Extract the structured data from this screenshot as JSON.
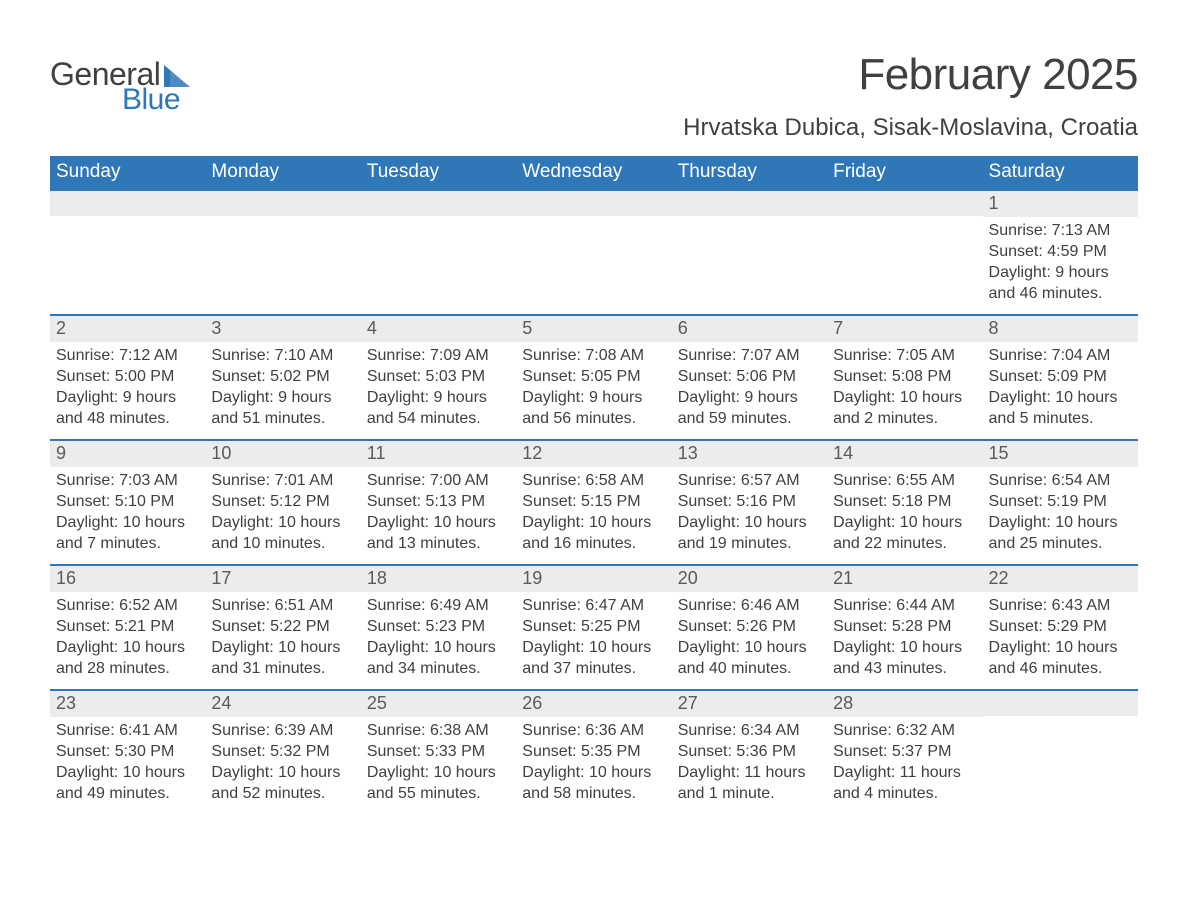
{
  "brand": {
    "word1": "General",
    "word2": "Blue",
    "color_primary": "#2f77b7",
    "color_text": "#404040"
  },
  "title": "February 2025",
  "location": "Hrvatska Dubica, Sisak-Moslavina, Croatia",
  "colors": {
    "header_bg": "#2f77b7",
    "header_text": "#ffffff",
    "daynum_bg": "#ececec",
    "border": "#2f77b7",
    "body_text": "#404040",
    "background": "#ffffff"
  },
  "fonts": {
    "title_pt": 44,
    "location_pt": 24,
    "day_header_pt": 19,
    "daynum_pt": 18,
    "details_pt": 16
  },
  "day_labels": [
    "Sunday",
    "Monday",
    "Tuesday",
    "Wednesday",
    "Thursday",
    "Friday",
    "Saturday"
  ],
  "weeks": [
    [
      null,
      null,
      null,
      null,
      null,
      null,
      {
        "num": "1",
        "sunrise": "Sunrise: 7:13 AM",
        "sunset": "Sunset: 4:59 PM",
        "daylight1": "Daylight: 9 hours",
        "daylight2": "and 46 minutes."
      }
    ],
    [
      {
        "num": "2",
        "sunrise": "Sunrise: 7:12 AM",
        "sunset": "Sunset: 5:00 PM",
        "daylight1": "Daylight: 9 hours",
        "daylight2": "and 48 minutes."
      },
      {
        "num": "3",
        "sunrise": "Sunrise: 7:10 AM",
        "sunset": "Sunset: 5:02 PM",
        "daylight1": "Daylight: 9 hours",
        "daylight2": "and 51 minutes."
      },
      {
        "num": "4",
        "sunrise": "Sunrise: 7:09 AM",
        "sunset": "Sunset: 5:03 PM",
        "daylight1": "Daylight: 9 hours",
        "daylight2": "and 54 minutes."
      },
      {
        "num": "5",
        "sunrise": "Sunrise: 7:08 AM",
        "sunset": "Sunset: 5:05 PM",
        "daylight1": "Daylight: 9 hours",
        "daylight2": "and 56 minutes."
      },
      {
        "num": "6",
        "sunrise": "Sunrise: 7:07 AM",
        "sunset": "Sunset: 5:06 PM",
        "daylight1": "Daylight: 9 hours",
        "daylight2": "and 59 minutes."
      },
      {
        "num": "7",
        "sunrise": "Sunrise: 7:05 AM",
        "sunset": "Sunset: 5:08 PM",
        "daylight1": "Daylight: 10 hours",
        "daylight2": "and 2 minutes."
      },
      {
        "num": "8",
        "sunrise": "Sunrise: 7:04 AM",
        "sunset": "Sunset: 5:09 PM",
        "daylight1": "Daylight: 10 hours",
        "daylight2": "and 5 minutes."
      }
    ],
    [
      {
        "num": "9",
        "sunrise": "Sunrise: 7:03 AM",
        "sunset": "Sunset: 5:10 PM",
        "daylight1": "Daylight: 10 hours",
        "daylight2": "and 7 minutes."
      },
      {
        "num": "10",
        "sunrise": "Sunrise: 7:01 AM",
        "sunset": "Sunset: 5:12 PM",
        "daylight1": "Daylight: 10 hours",
        "daylight2": "and 10 minutes."
      },
      {
        "num": "11",
        "sunrise": "Sunrise: 7:00 AM",
        "sunset": "Sunset: 5:13 PM",
        "daylight1": "Daylight: 10 hours",
        "daylight2": "and 13 minutes."
      },
      {
        "num": "12",
        "sunrise": "Sunrise: 6:58 AM",
        "sunset": "Sunset: 5:15 PM",
        "daylight1": "Daylight: 10 hours",
        "daylight2": "and 16 minutes."
      },
      {
        "num": "13",
        "sunrise": "Sunrise: 6:57 AM",
        "sunset": "Sunset: 5:16 PM",
        "daylight1": "Daylight: 10 hours",
        "daylight2": "and 19 minutes."
      },
      {
        "num": "14",
        "sunrise": "Sunrise: 6:55 AM",
        "sunset": "Sunset: 5:18 PM",
        "daylight1": "Daylight: 10 hours",
        "daylight2": "and 22 minutes."
      },
      {
        "num": "15",
        "sunrise": "Sunrise: 6:54 AM",
        "sunset": "Sunset: 5:19 PM",
        "daylight1": "Daylight: 10 hours",
        "daylight2": "and 25 minutes."
      }
    ],
    [
      {
        "num": "16",
        "sunrise": "Sunrise: 6:52 AM",
        "sunset": "Sunset: 5:21 PM",
        "daylight1": "Daylight: 10 hours",
        "daylight2": "and 28 minutes."
      },
      {
        "num": "17",
        "sunrise": "Sunrise: 6:51 AM",
        "sunset": "Sunset: 5:22 PM",
        "daylight1": "Daylight: 10 hours",
        "daylight2": "and 31 minutes."
      },
      {
        "num": "18",
        "sunrise": "Sunrise: 6:49 AM",
        "sunset": "Sunset: 5:23 PM",
        "daylight1": "Daylight: 10 hours",
        "daylight2": "and 34 minutes."
      },
      {
        "num": "19",
        "sunrise": "Sunrise: 6:47 AM",
        "sunset": "Sunset: 5:25 PM",
        "daylight1": "Daylight: 10 hours",
        "daylight2": "and 37 minutes."
      },
      {
        "num": "20",
        "sunrise": "Sunrise: 6:46 AM",
        "sunset": "Sunset: 5:26 PM",
        "daylight1": "Daylight: 10 hours",
        "daylight2": "and 40 minutes."
      },
      {
        "num": "21",
        "sunrise": "Sunrise: 6:44 AM",
        "sunset": "Sunset: 5:28 PM",
        "daylight1": "Daylight: 10 hours",
        "daylight2": "and 43 minutes."
      },
      {
        "num": "22",
        "sunrise": "Sunrise: 6:43 AM",
        "sunset": "Sunset: 5:29 PM",
        "daylight1": "Daylight: 10 hours",
        "daylight2": "and 46 minutes."
      }
    ],
    [
      {
        "num": "23",
        "sunrise": "Sunrise: 6:41 AM",
        "sunset": "Sunset: 5:30 PM",
        "daylight1": "Daylight: 10 hours",
        "daylight2": "and 49 minutes."
      },
      {
        "num": "24",
        "sunrise": "Sunrise: 6:39 AM",
        "sunset": "Sunset: 5:32 PM",
        "daylight1": "Daylight: 10 hours",
        "daylight2": "and 52 minutes."
      },
      {
        "num": "25",
        "sunrise": "Sunrise: 6:38 AM",
        "sunset": "Sunset: 5:33 PM",
        "daylight1": "Daylight: 10 hours",
        "daylight2": "and 55 minutes."
      },
      {
        "num": "26",
        "sunrise": "Sunrise: 6:36 AM",
        "sunset": "Sunset: 5:35 PM",
        "daylight1": "Daylight: 10 hours",
        "daylight2": "and 58 minutes."
      },
      {
        "num": "27",
        "sunrise": "Sunrise: 6:34 AM",
        "sunset": "Sunset: 5:36 PM",
        "daylight1": "Daylight: 11 hours",
        "daylight2": "and 1 minute."
      },
      {
        "num": "28",
        "sunrise": "Sunrise: 6:32 AM",
        "sunset": "Sunset: 5:37 PM",
        "daylight1": "Daylight: 11 hours",
        "daylight2": "and 4 minutes."
      },
      null
    ]
  ]
}
